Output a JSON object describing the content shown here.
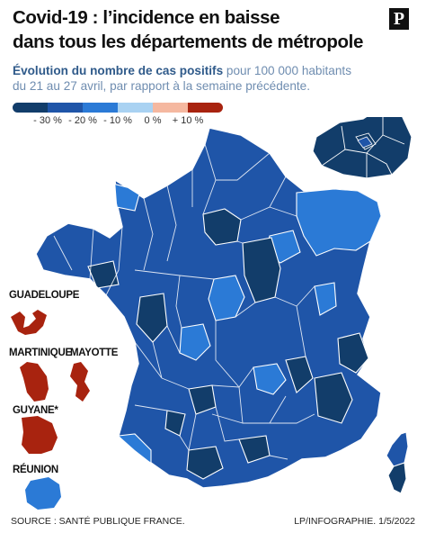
{
  "header": {
    "title_line1": "Covid-19 : l’incidence en baisse",
    "title_line2": "dans tous les départements de métropole",
    "subtitle_bold": "Évolution du nombre de cas positifs",
    "subtitle_rest": " pour 100 000 habitants",
    "subtitle_line2": "du 21 au 27 avril, par rapport à la semaine précédente.",
    "logo": "P"
  },
  "legend": {
    "colors": [
      "#123d6a",
      "#1f55a8",
      "#2b7ad6",
      "#a9d2f2",
      "#f5b8a0",
      "#a8230f"
    ],
    "labels": [
      "- 30 %",
      "- 20 %",
      "- 10 %",
      "0 %",
      "+ 10 %"
    ]
  },
  "territories": {
    "guadeloupe": "GUADELOUPE",
    "martinique": "MARTINIQUE",
    "mayotte": "MAYOTTE",
    "guyane": "GUYANE*",
    "reunion": "RÉUNION"
  },
  "footer": {
    "source": "SOURCE : SANTÉ PUBLIQUE FRANCE.",
    "credit": "LP/INFOGRAPHIE.  1/5/2022"
  }
}
